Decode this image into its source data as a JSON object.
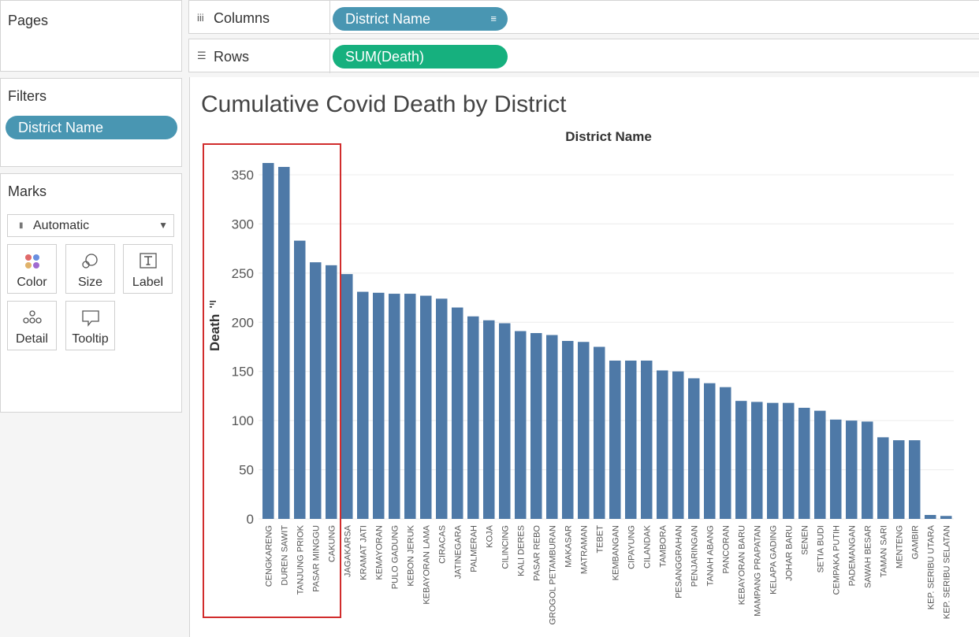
{
  "sidebar": {
    "pages_label": "Pages",
    "filters_label": "Filters",
    "filter_pill": "District Name",
    "marks_label": "Marks",
    "mark_type": "Automatic",
    "mark_cards": [
      "Color",
      "Size",
      "Label",
      "Detail",
      "Tooltip"
    ]
  },
  "shelves": {
    "columns_label": "Columns",
    "columns_pill": "District Name",
    "rows_label": "Rows",
    "rows_pill": "SUM(Death)"
  },
  "colors": {
    "bar": "#4e79a7",
    "pill_blue": "#4996b2",
    "pill_green": "#16b07e",
    "highlight": "#d12c2c"
  },
  "chart_data": {
    "type": "bar",
    "title": "Cumulative Covid Death by District",
    "xlabel": "District Name",
    "ylabel": "Death",
    "ylim": [
      0,
      370
    ],
    "yticks": [
      0,
      50,
      100,
      150,
      200,
      250,
      300,
      350
    ],
    "grid": true,
    "categories": [
      "CENGKARENG",
      "DUREN SAWIT",
      "TANJUNG PRIOK",
      "PASAR MINGGU",
      "CAKUNG",
      "JAGAKARSA",
      "KRAMAT JATI",
      "KEMAYORAN",
      "PULO GADUNG",
      "KEBON JERUK",
      "KEBAYORAN LAMA",
      "CIRACAS",
      "JATINEGARA",
      "PALMERAH",
      "KOJA",
      "CILINCING",
      "KALI DERES",
      "PASAR REBO",
      "GROGOL PETAMBURAN",
      "MAKASAR",
      "MATRAMAN",
      "TEBET",
      "KEMBANGAN",
      "CIPAYUNG",
      "CILANDAK",
      "TAMBORA",
      "PESANGGRAHAN",
      "PENJARINGAN",
      "TANAH ABANG",
      "PANCORAN",
      "KEBAYORAN BARU",
      "MAMPANG PRAPATAN",
      "KELAPA GADING",
      "JOHAR BARU",
      "SENEN",
      "SETIA BUDI",
      "CEMPAKA PUTIH",
      "PADEMANGAN",
      "SAWAH BESAR",
      "TAMAN SARI",
      "MENTENG",
      "GAMBIR",
      "KEP. SERIBU UTARA",
      "KEP. SERIBU SELATAN"
    ],
    "values": [
      362,
      358,
      283,
      261,
      258,
      249,
      231,
      230,
      229,
      229,
      227,
      224,
      215,
      206,
      202,
      199,
      191,
      189,
      187,
      181,
      180,
      175,
      161,
      161,
      161,
      151,
      150,
      143,
      138,
      134,
      120,
      119,
      118,
      118,
      113,
      110,
      101,
      100,
      99,
      83,
      80,
      80,
      4,
      3
    ]
  }
}
